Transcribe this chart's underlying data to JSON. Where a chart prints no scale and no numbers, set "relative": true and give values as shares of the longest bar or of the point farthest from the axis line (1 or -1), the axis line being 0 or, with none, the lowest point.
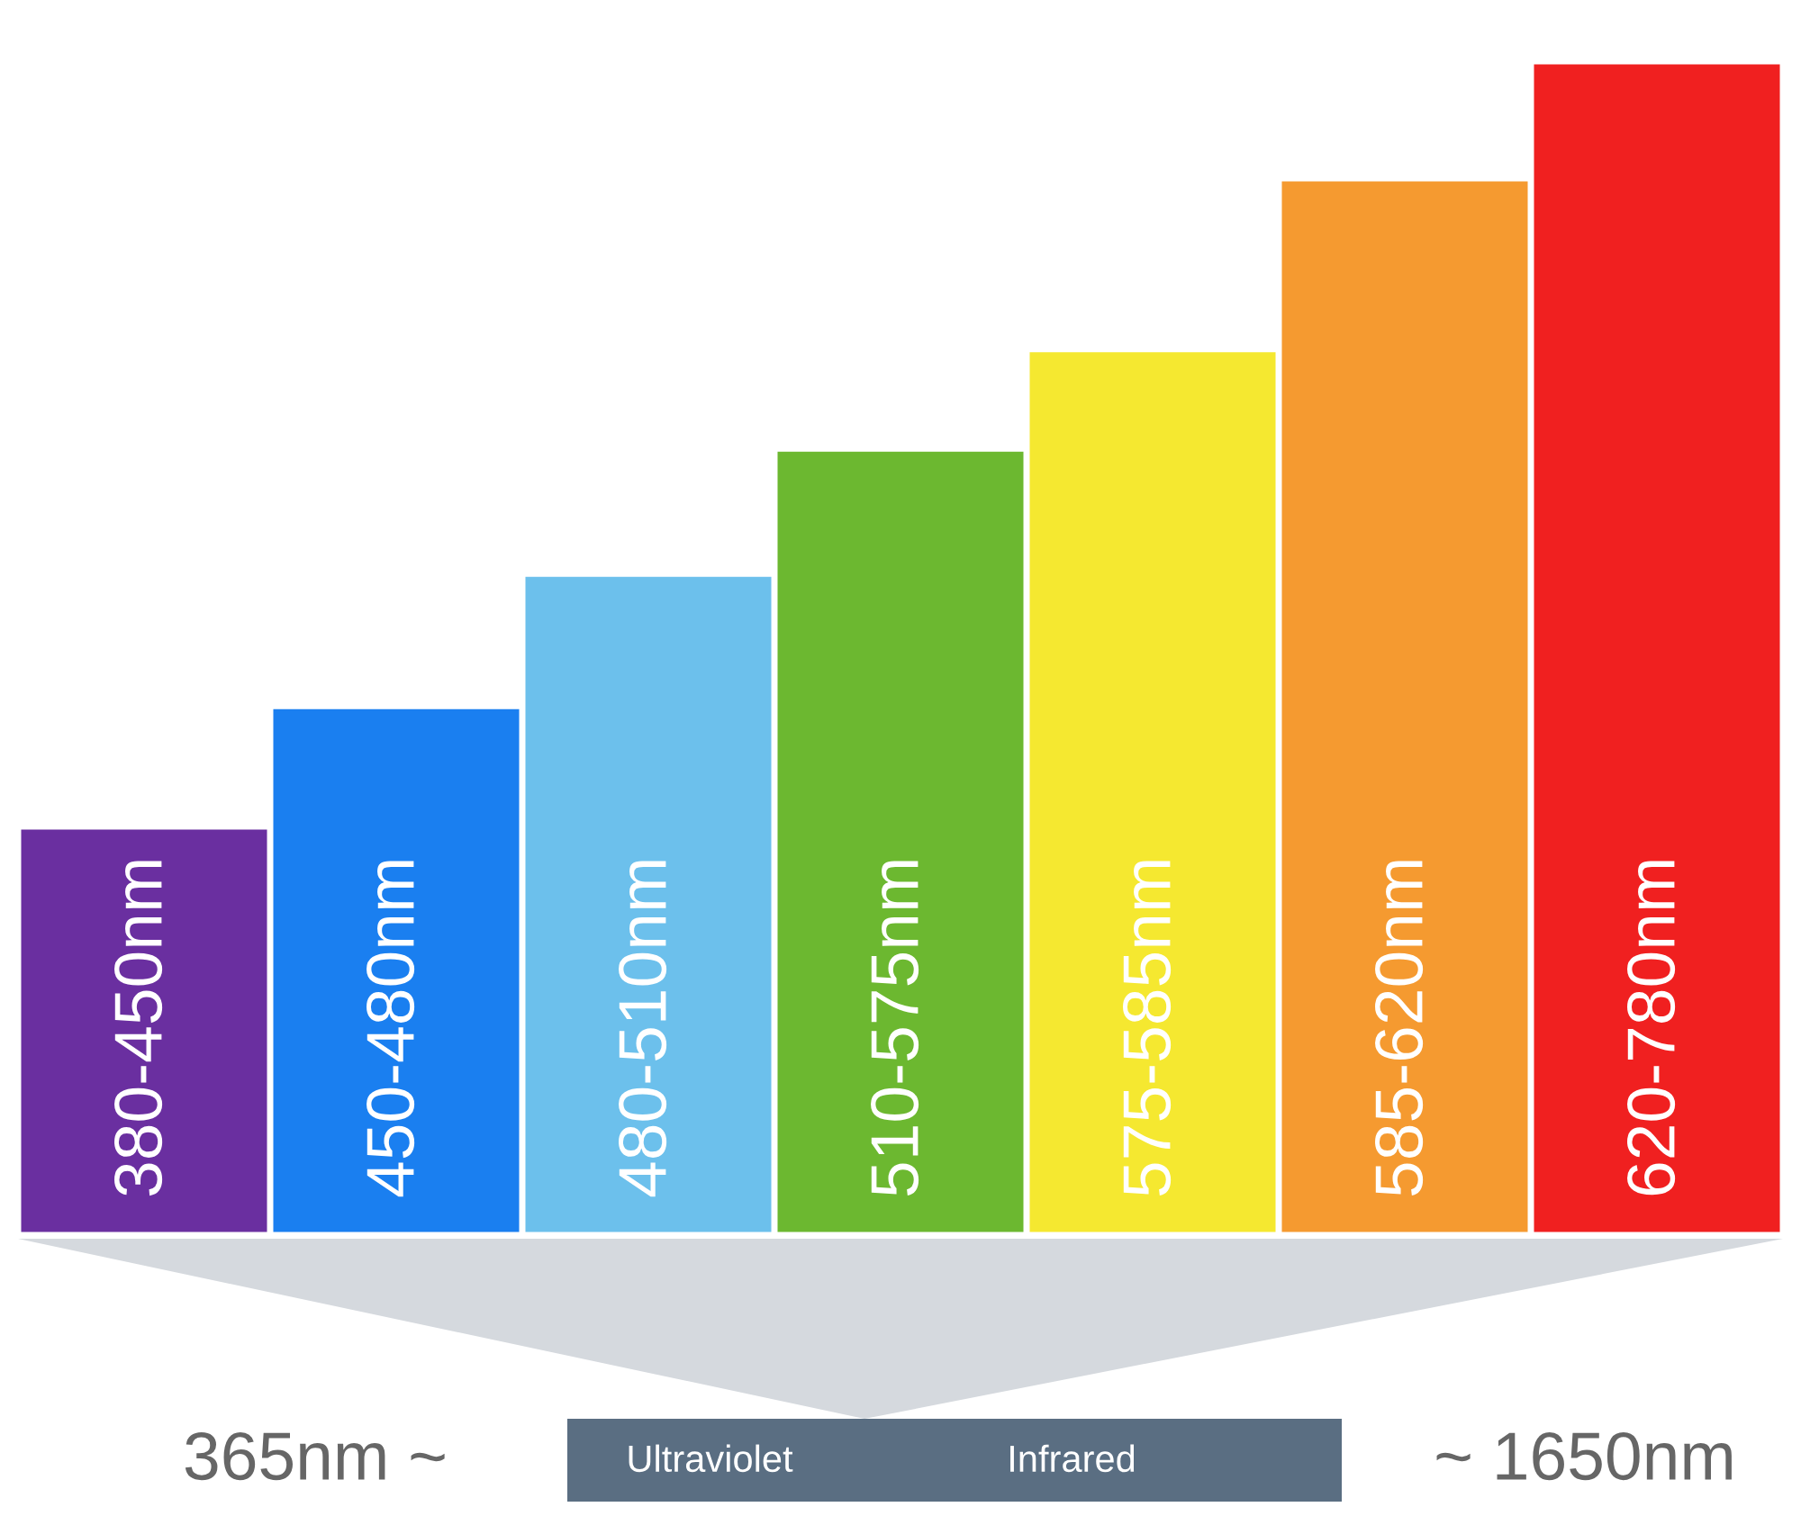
{
  "chart_data": {
    "type": "bar",
    "relative": true,
    "categories": [
      "380-450nm",
      "450-480nm",
      "480-510nm",
      "510-575nm",
      "575-585nm",
      "585-620nm",
      "620-780nm"
    ],
    "values": [
      0.346,
      0.449,
      0.562,
      0.669,
      0.754,
      0.9,
      1.0
    ],
    "colors": [
      "#6a2fa0",
      "#1a7ff0",
      "#6cc0ec",
      "#6cb830",
      "#f5e830",
      "#f59a30",
      "#f02020"
    ],
    "annotations": [
      "365nm ~",
      "Ultraviolet",
      "Infrared",
      "~ 1650nm"
    ]
  }
}
